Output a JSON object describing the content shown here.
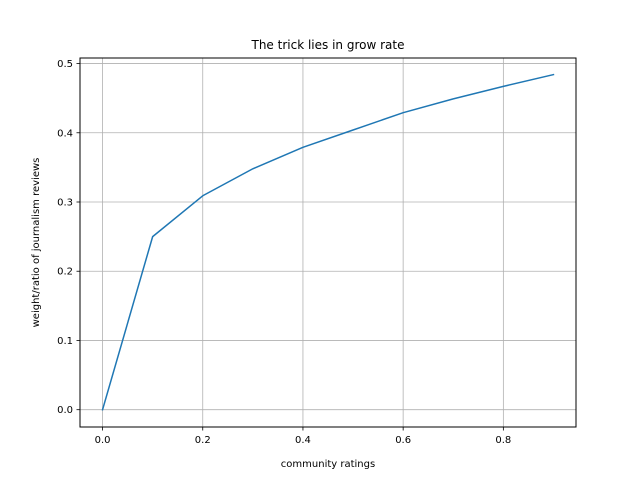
{
  "chart_data": {
    "type": "line",
    "title": "The trick lies in grow rate",
    "xlabel": "community ratings",
    "ylabel": "weight/ratio of journalism reviews",
    "xlim": [
      -0.045,
      0.945
    ],
    "ylim": [
      -0.025,
      0.508
    ],
    "x_ticks": [
      0.0,
      0.2,
      0.4,
      0.6,
      0.8
    ],
    "x_tick_labels": [
      "0.0",
      "0.2",
      "0.4",
      "0.6",
      "0.8"
    ],
    "y_ticks": [
      0.0,
      0.1,
      0.2,
      0.3,
      0.4,
      0.5
    ],
    "y_tick_labels": [
      "0.0",
      "0.1",
      "0.2",
      "0.3",
      "0.4",
      "0.5"
    ],
    "grid": true,
    "series": [
      {
        "color": "#1f77b4",
        "x": [
          0.0,
          0.1,
          0.2,
          0.3,
          0.4,
          0.5,
          0.6,
          0.7,
          0.8,
          0.9
        ],
        "y": [
          0.0,
          0.25,
          0.309,
          0.348,
          0.379,
          0.404,
          0.429,
          0.449,
          0.467,
          0.484
        ]
      }
    ]
  }
}
